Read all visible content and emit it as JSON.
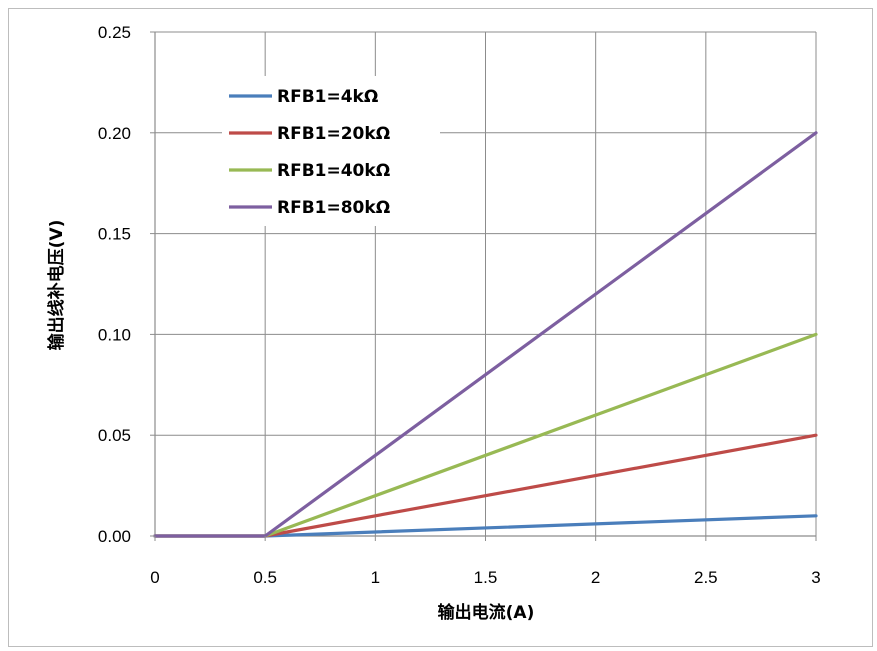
{
  "chart_data": {
    "type": "line",
    "xlabel": "输出电流(A)",
    "ylabel": "输出线补电压(V)",
    "xlim": [
      0,
      3
    ],
    "ylim": [
      0,
      0.25
    ],
    "x_ticks": [
      "0",
      "0.5",
      "1",
      "1.5",
      "2",
      "2.5",
      "3"
    ],
    "y_ticks": [
      "0.00",
      "0.05",
      "0.10",
      "0.15",
      "0.20",
      "0.25"
    ],
    "grid": true,
    "legend_position": "top-left",
    "series": [
      {
        "name": "RFB1=4kΩ",
        "color": "#4a7ebb",
        "x": [
          0,
          0.5,
          3
        ],
        "y": [
          0,
          0,
          0.01
        ]
      },
      {
        "name": "RFB1=20kΩ",
        "color": "#be4b48",
        "x": [
          0,
          0.5,
          3
        ],
        "y": [
          0,
          0,
          0.05
        ]
      },
      {
        "name": "RFB1=40kΩ",
        "color": "#98b954",
        "x": [
          0,
          0.5,
          3
        ],
        "y": [
          0,
          0,
          0.1
        ]
      },
      {
        "name": "RFB1=80kΩ",
        "color": "#7d5fa0",
        "x": [
          0,
          0.5,
          3
        ],
        "y": [
          0,
          0,
          0.2
        ]
      }
    ]
  }
}
